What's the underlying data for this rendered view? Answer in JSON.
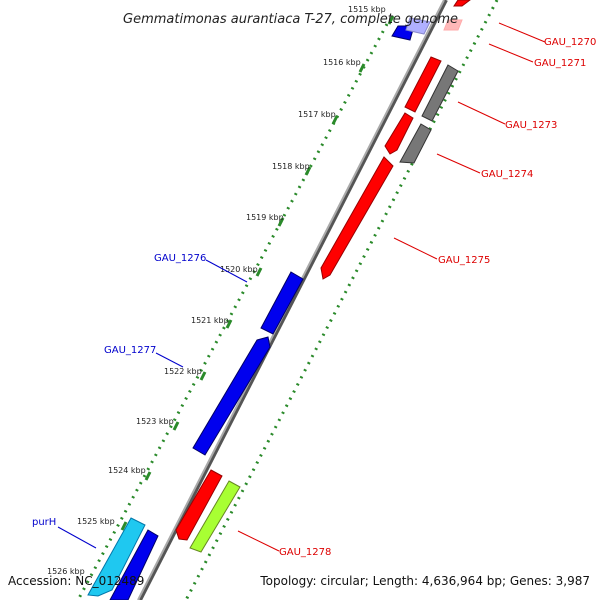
{
  "title": "Gemmatimonas aurantiaca T-27, complete genome",
  "accession": "Accession: NC_012489",
  "summary": "Topology: circular; Length: 4,636,964 bp; Genes: 3,987",
  "ticks": [
    "1515 kbp",
    "1516 kbp",
    "1517 kbp",
    "1518 kbp",
    "1519 kbp",
    "1520 kbp",
    "1521 kbp",
    "1522 kbp",
    "1523 kbp",
    "1524 kbp",
    "1525 kbp",
    "1526 kbp"
  ],
  "gene_labels": {
    "gau1270": "GAU_1270",
    "gau1271": "GAU_1271",
    "gau1273": "GAU_1273",
    "gau1274": "GAU_1274",
    "gau1275": "GAU_1275",
    "gau1276": "GAU_1276",
    "gau1277": "GAU_1277",
    "gau1278": "GAU_1278",
    "purH": "purH"
  },
  "colors": {
    "forward_red": "#ff0000",
    "forward_gray": "#777777",
    "reverse_blue": "#0000ee",
    "reverse_cyan": "#1fc8f0",
    "lime": "#a8ff33",
    "dotted_green": "#2a8a2a",
    "backbone": "#888888",
    "label_red": "#dd0000",
    "label_blue": "#0000cc"
  }
}
